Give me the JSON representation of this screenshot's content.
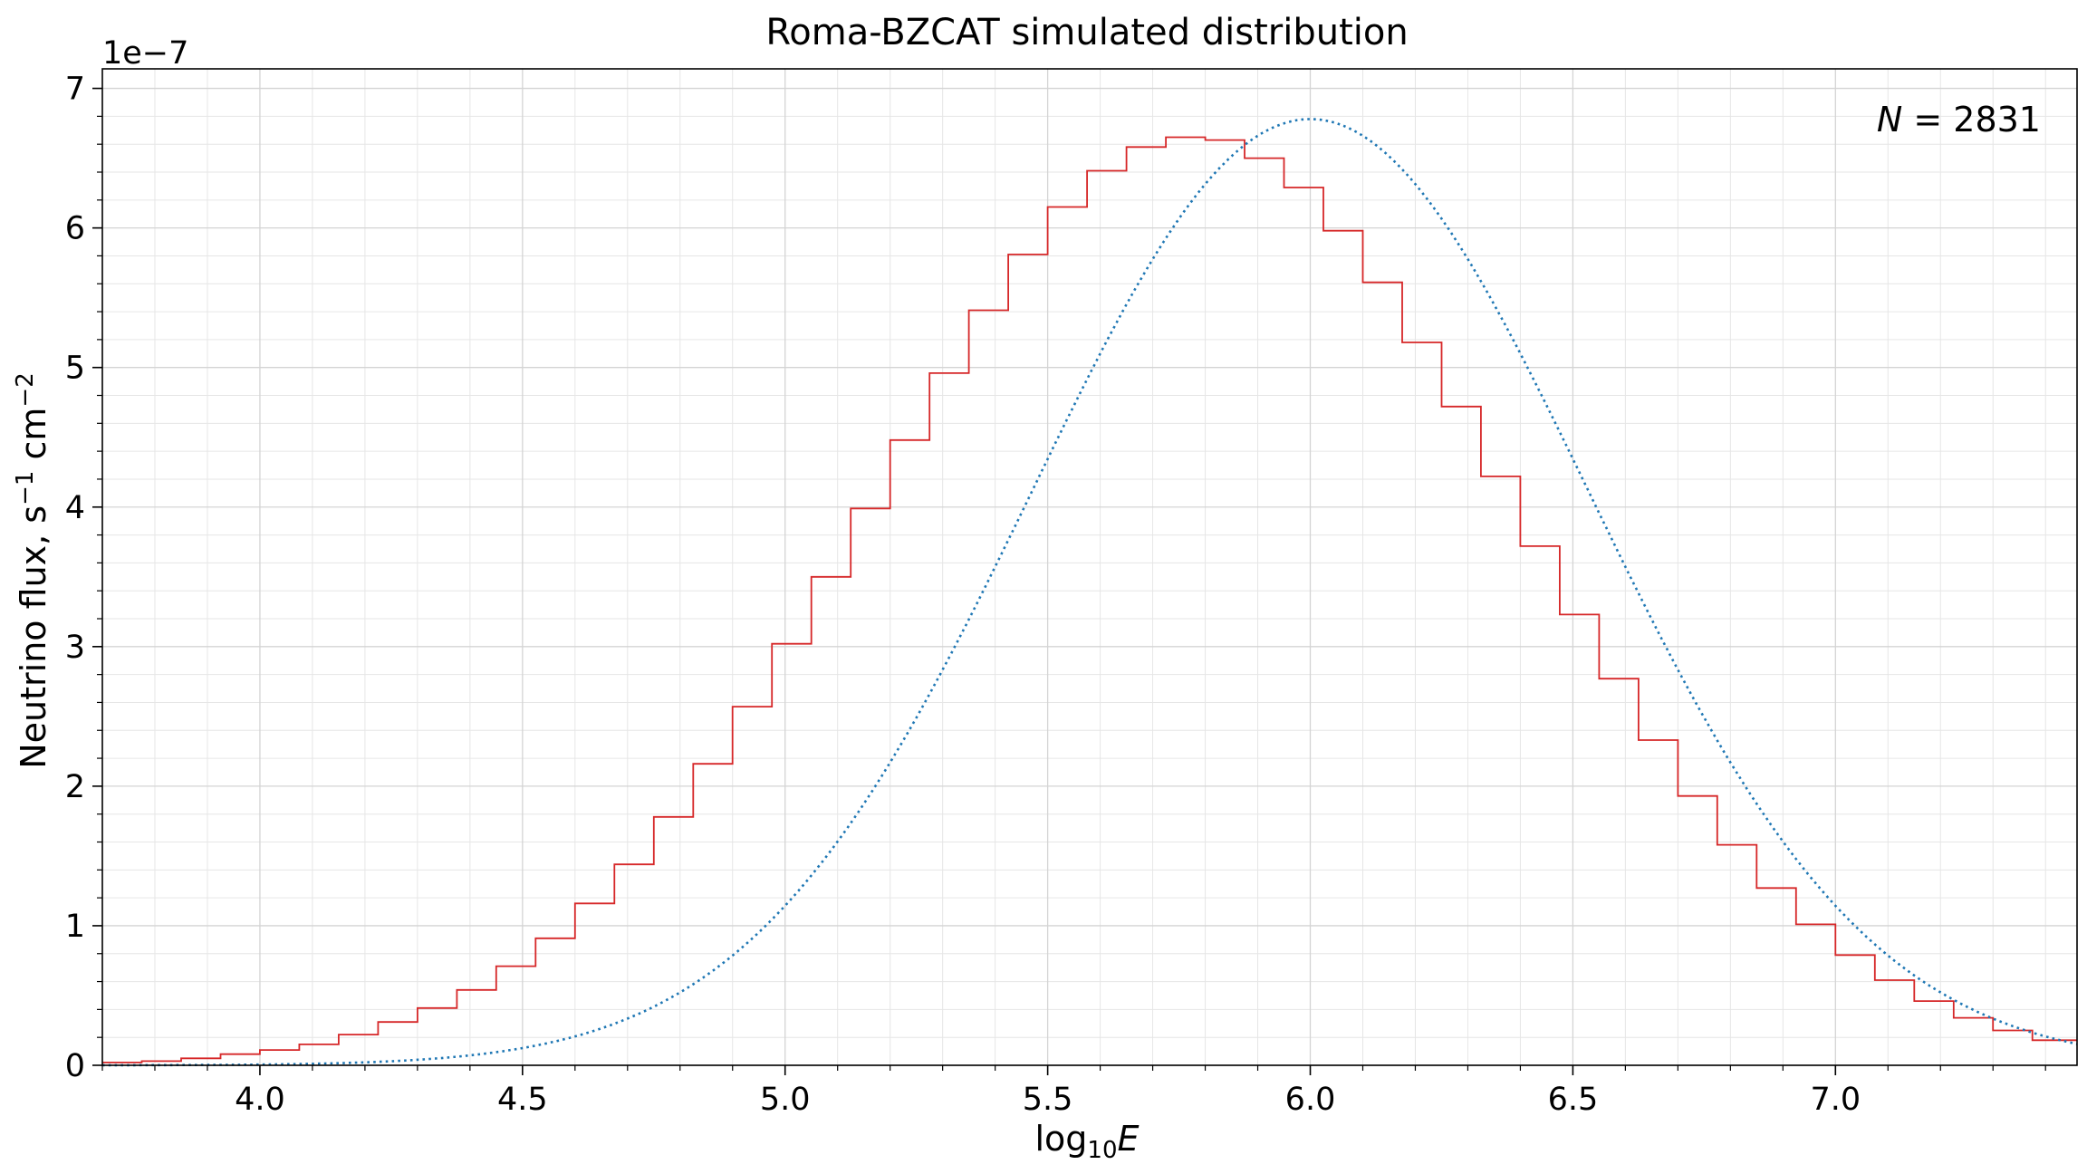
{
  "chart_data": {
    "type": "line",
    "title": "Roma-BZCAT simulated distribution",
    "xlabel": {
      "base": "log",
      "sub": "10",
      "var": "E"
    },
    "ylabel": {
      "text": "Neutrino flux, s",
      "sup1": "−1",
      "mid": " cm",
      "sup2": "−2"
    },
    "offset_text": "1e−7",
    "annotation": {
      "var": "N",
      "rest": " = 2831"
    },
    "xlim": [
      3.7,
      7.46
    ],
    "ylim": [
      0,
      7.14
    ],
    "x_ticks": [
      4.0,
      4.5,
      5.0,
      5.5,
      6.0,
      6.5,
      7.0
    ],
    "x_tick_labels": [
      "4.0",
      "4.5",
      "5.0",
      "5.5",
      "6.0",
      "6.5",
      "7.0"
    ],
    "y_ticks": [
      0,
      1,
      2,
      3,
      4,
      5,
      6,
      7
    ],
    "y_tick_labels": [
      "0",
      "1",
      "2",
      "3",
      "4",
      "5",
      "6",
      "7"
    ],
    "y_scale_multiplier": 1e-07,
    "grid": true,
    "minor_grid": true,
    "series": [
      {
        "style": "step",
        "color": "#d62728",
        "bin_edges": [
          3.7,
          3.775,
          3.85,
          3.925,
          4.0,
          4.075,
          4.15,
          4.225,
          4.3,
          4.375,
          4.45,
          4.525,
          4.6,
          4.675,
          4.75,
          4.825,
          4.9,
          4.975,
          5.05,
          5.125,
          5.2,
          5.275,
          5.35,
          5.425,
          5.5,
          5.575,
          5.65,
          5.725,
          5.8,
          5.875,
          5.95,
          6.025,
          6.1,
          6.175,
          6.25,
          6.325,
          6.4,
          6.475,
          6.55,
          6.625,
          6.7,
          6.775,
          6.85,
          6.925,
          7.0,
          7.075,
          7.15,
          7.225,
          7.3,
          7.375,
          7.46
        ],
        "values": [
          0.02,
          0.03,
          0.05,
          0.08,
          0.11,
          0.15,
          0.22,
          0.31,
          0.41,
          0.54,
          0.71,
          0.91,
          1.16,
          1.44,
          1.78,
          2.16,
          2.57,
          3.02,
          3.5,
          3.99,
          4.48,
          4.96,
          5.41,
          5.81,
          6.15,
          6.41,
          6.58,
          6.65,
          6.63,
          6.5,
          6.29,
          5.98,
          5.61,
          5.18,
          4.72,
          4.22,
          3.72,
          3.23,
          2.77,
          2.33,
          1.93,
          1.58,
          1.27,
          1.01,
          0.79,
          0.61,
          0.46,
          0.34,
          0.25,
          0.18
        ]
      },
      {
        "style": "dotted",
        "color": "#1f77b4",
        "function": "gaussian",
        "amplitude": 6.78,
        "mean": 6.0,
        "sigma": 0.53
      }
    ]
  }
}
